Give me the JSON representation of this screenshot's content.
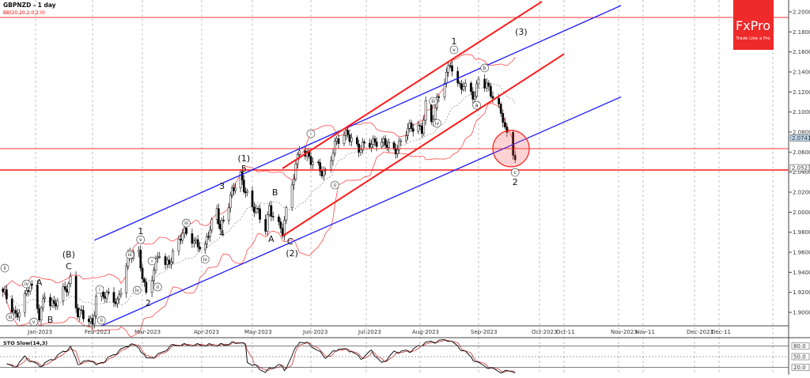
{
  "header": {
    "symbol_title": "GBPNZD - 1 day",
    "indicator": "BB(20,20,2.0,2.0)"
  },
  "logo": {
    "brand": "FxPro",
    "tagline": "Trade Like a Pro",
    "color": "#ee2a2a"
  },
  "colors": {
    "bull": "#ffffff",
    "bear": "#000000",
    "bands": "#ff4a4a",
    "mid": "#888888",
    "blue_channel": "#1a1aff",
    "red_channel": "#ff1a1a",
    "stoch_k": "#000000",
    "stoch_d": "#cc3333"
  },
  "chart_data": [
    {
      "type": "candlestick",
      "title": "GBPNZD - 1 day",
      "ylim": [
        1.88,
        2.21
      ],
      "y_ticks": [
        "2.20000",
        "2.18000",
        "2.16000",
        "2.14000",
        "2.12000",
        "2.10000",
        "2.08000",
        "2.06000",
        "2.04000",
        "2.02000",
        "2.00000",
        "1.98000",
        "1.96000",
        "1.94000",
        "1.92000",
        "1.90000"
      ],
      "x_ticks": [
        {
          "label": "Jan-2023",
          "date": "2023-01-01"
        },
        {
          "label": "Feb-2023",
          "date": "2023-02-01"
        },
        {
          "label": "Mar-2023",
          "date": "2023-03-01"
        },
        {
          "label": "Apr-2023",
          "date": "2023-04-01"
        },
        {
          "label": "May-2023",
          "date": "2023-05-01"
        },
        {
          "label": "Jun-2023",
          "date": "2023-06-01"
        },
        {
          "label": "Jul-2023",
          "date": "2023-07-01"
        },
        {
          "label": "Aug-2023",
          "date": "2023-08-01"
        },
        {
          "label": "Sep-2023",
          "date": "2023-09-01"
        },
        {
          "label": "Oct-2023",
          "date": "2023-10-01"
        },
        {
          "label": "Oct-11",
          "date": "2023-10-11"
        },
        {
          "label": "Nov-2023",
          "date": "2023-11-01"
        },
        {
          "label": "Nov-11",
          "date": "2023-11-11"
        },
        {
          "label": "Dec-2023",
          "date": "2023-12-01"
        },
        {
          "label": "Dec-11",
          "date": "2023-12-11"
        }
      ],
      "grid": "vertical-dashed",
      "approx_close_pivots": [
        [
          "2022-12-14",
          1.918
        ],
        [
          "2022-12-21",
          1.898
        ],
        [
          "2022-12-29",
          1.926
        ],
        [
          "2023-01-03",
          1.898
        ],
        [
          "2023-01-06",
          1.92
        ],
        [
          "2023-01-11",
          1.904
        ],
        [
          "2023-01-20",
          1.934
        ],
        [
          "2023-01-24",
          1.898
        ],
        [
          "2023-02-01",
          1.89
        ],
        [
          "2023-02-03",
          1.918
        ],
        [
          "2023-02-15",
          1.912
        ],
        [
          "2023-02-21",
          1.954
        ],
        [
          "2023-02-27",
          1.958
        ],
        [
          "2023-03-03",
          1.92
        ],
        [
          "2023-03-10",
          1.958
        ],
        [
          "2023-03-13",
          1.946
        ],
        [
          "2023-03-22",
          1.978
        ],
        [
          "2023-04-03",
          1.966
        ],
        [
          "2023-04-10",
          2.002
        ],
        [
          "2023-04-12",
          1.986
        ],
        [
          "2023-04-19",
          2.018
        ],
        [
          "2023-04-24",
          2.036
        ],
        [
          "2023-05-01",
          2.006
        ],
        [
          "2023-05-08",
          1.984
        ],
        [
          "2023-05-10",
          2.007
        ],
        [
          "2023-05-17",
          1.978
        ],
        [
          "2023-05-22",
          2.029
        ],
        [
          "2023-05-26",
          2.067
        ],
        [
          "2023-06-01",
          2.049
        ],
        [
          "2023-06-09",
          2.041
        ],
        [
          "2023-06-15",
          2.069
        ],
        [
          "2023-06-21",
          2.081
        ],
        [
          "2023-06-27",
          2.061
        ],
        [
          "2023-07-06",
          2.073
        ],
        [
          "2023-07-17",
          2.061
        ],
        [
          "2023-07-24",
          2.081
        ],
        [
          "2023-08-02",
          2.085
        ],
        [
          "2023-08-04",
          2.109
        ],
        [
          "2023-08-07",
          2.089
        ],
        [
          "2023-08-17",
          2.152
        ],
        [
          "2023-08-21",
          2.125
        ],
        [
          "2023-08-28",
          2.121
        ],
        [
          "2023-08-30",
          2.117
        ],
        [
          "2023-09-01",
          2.137
        ],
        [
          "2023-09-07",
          2.117
        ],
        [
          "2023-09-13",
          2.097
        ],
        [
          "2023-09-15",
          2.077
        ],
        [
          "2023-09-19",
          2.05233
        ]
      ],
      "price_labels": [
        {
          "text": "2.07416",
          "price": 2.07416,
          "style": "bid"
        },
        {
          "text": "2.05233",
          "price": 2.05233,
          "style": "last"
        }
      ],
      "horizontal_lines": [
        2.1944,
        2.0635,
        2.0421
      ],
      "trendlines": [
        {
          "color": "blue",
          "from": [
            "2023-02-02",
            1.972
          ],
          "to": [
            "2023-11-02",
            2.2063
          ]
        },
        {
          "color": "blue",
          "from": [
            "2023-02-06",
            1.8865
          ],
          "to": [
            "2023-11-02",
            2.1151
          ]
        },
        {
          "color": "red",
          "from": [
            "2023-05-17",
            2.0437
          ],
          "to": [
            "2023-10-02",
            2.2103
          ]
        },
        {
          "color": "red",
          "from": [
            "2023-05-17",
            1.9762
          ],
          "to": [
            "2023-10-11",
            2.1579
          ]
        }
      ],
      "highlight_circle": {
        "date": "2023-09-17",
        "price": 2.0635
      },
      "wave_labels": [
        {
          "text": "ii",
          "date": "2022-12-15",
          "price": 1.9442,
          "circled": true
        },
        {
          "text": "iii",
          "date": "2022-12-18",
          "price": 1.8953,
          "circled": true
        },
        {
          "text": "iv",
          "date": "2022-12-27",
          "price": 1.9284,
          "circled": true
        },
        {
          "text": "v",
          "date": "2022-12-31",
          "price": 1.8905,
          "circled": true
        },
        {
          "text": "A",
          "date": "2023-01-03",
          "price": 1.93,
          "circled": false
        },
        {
          "text": "B",
          "date": "2023-01-09",
          "price": 1.8929,
          "circled": false
        },
        {
          "text": "(B)",
          "date": "2023-01-19",
          "price": 1.958,
          "circled": false
        },
        {
          "text": "C",
          "date": "2023-01-19",
          "price": 1.946,
          "circled": false
        },
        {
          "text": "i",
          "date": "2023-02-05",
          "price": 1.9229,
          "circled": true
        },
        {
          "text": "ii",
          "date": "2023-02-06",
          "price": 1.8921,
          "circled": true
        },
        {
          "text": "iii",
          "date": "2023-02-22",
          "price": 1.9576,
          "circled": true
        },
        {
          "text": "iv",
          "date": "2023-02-26",
          "price": 1.9221,
          "circled": true
        },
        {
          "text": "v",
          "date": "2023-02-28",
          "price": 1.9726,
          "circled": true
        },
        {
          "text": "1",
          "date": "2023-02-28",
          "price": 1.9813,
          "circled": false
        },
        {
          "text": "2",
          "date": "2023-03-04",
          "price": 1.9095,
          "circled": false
        },
        {
          "text": "i",
          "date": "2023-03-06",
          "price": 1.9513,
          "circled": true
        },
        {
          "text": "ii",
          "date": "2023-03-09",
          "price": 1.9253,
          "circled": true
        },
        {
          "text": "iii",
          "date": "2023-03-24",
          "price": 1.9892,
          "circled": true
        },
        {
          "text": "iv",
          "date": "2023-04-03",
          "price": 1.9529,
          "circled": true
        },
        {
          "text": "3",
          "date": "2023-04-13",
          "price": 2.0263,
          "circled": false
        },
        {
          "text": "4",
          "date": "2023-04-13",
          "price": 1.979,
          "circled": false
        },
        {
          "text": "(1)",
          "date": "2023-04-26",
          "price": 2.054,
          "circled": false
        },
        {
          "text": "5",
          "date": "2023-04-26",
          "price": 2.0437,
          "circled": false
        },
        {
          "text": "A",
          "date": "2023-05-11",
          "price": 1.9734,
          "circled": false
        },
        {
          "text": "B",
          "date": "2023-05-13",
          "price": 2.02,
          "circled": false
        },
        {
          "text": "C",
          "date": "2023-05-21",
          "price": 1.971,
          "circled": false
        },
        {
          "text": "(2)",
          "date": "2023-05-22",
          "price": 1.9592,
          "circled": false
        },
        {
          "text": "i",
          "date": "2023-06-01",
          "price": 2.0784,
          "circled": true
        },
        {
          "text": "ii",
          "date": "2023-06-14",
          "price": 2.0271,
          "circled": true
        },
        {
          "text": "iii",
          "date": "2023-08-08",
          "price": 2.1108,
          "circled": true
        },
        {
          "text": "iv",
          "date": "2023-08-10",
          "price": 2.0887,
          "circled": true
        },
        {
          "text": "v",
          "date": "2023-08-19",
          "price": 2.1621,
          "circled": true
        },
        {
          "text": "1",
          "date": "2023-08-19",
          "price": 2.1708,
          "circled": false
        },
        {
          "text": "a",
          "date": "2023-08-31",
          "price": 2.1068,
          "circled": true
        },
        {
          "text": "b",
          "date": "2023-09-04",
          "price": 2.144,
          "circled": true
        },
        {
          "text": "c",
          "date": "2023-09-19",
          "price": 2.0397,
          "circled": true
        },
        {
          "text": "2",
          "date": "2023-09-19",
          "price": 2.0303,
          "circled": false
        },
        {
          "text": "(3)",
          "date": "2023-09-22",
          "price": 2.1803,
          "circled": false
        }
      ]
    },
    {
      "type": "line",
      "title": "STO Slow(14,3)",
      "ylim": [
        0,
        100
      ],
      "y_ticks": [
        "80.0",
        "50.0",
        "20.0"
      ],
      "levels": [
        80,
        50,
        20
      ],
      "k_pivots": [
        [
          "2022-12-16",
          30
        ],
        [
          "2022-12-20",
          18
        ],
        [
          "2022-12-26",
          48
        ],
        [
          "2023-01-03",
          23
        ],
        [
          "2023-01-09",
          38
        ],
        [
          "2023-01-20",
          76
        ],
        [
          "2023-01-24",
          30
        ],
        [
          "2023-02-01",
          40
        ],
        [
          "2023-02-03",
          23
        ],
        [
          "2023-02-22",
          85
        ],
        [
          "2023-02-27",
          76
        ],
        [
          "2023-03-03",
          44
        ],
        [
          "2023-03-08",
          51
        ],
        [
          "2023-03-17",
          83
        ],
        [
          "2023-03-30",
          83
        ],
        [
          "2023-04-12",
          83
        ],
        [
          "2023-04-24",
          92
        ],
        [
          "2023-04-27",
          80
        ],
        [
          "2023-04-28",
          37
        ],
        [
          "2023-05-08",
          8
        ],
        [
          "2023-05-15",
          30
        ],
        [
          "2023-05-18",
          12
        ],
        [
          "2023-05-26",
          94
        ],
        [
          "2023-06-01",
          83
        ],
        [
          "2023-06-09",
          48
        ],
        [
          "2023-06-16",
          73
        ],
        [
          "2023-06-23",
          66
        ],
        [
          "2023-06-28",
          44
        ],
        [
          "2023-07-04",
          66
        ],
        [
          "2023-07-10",
          30
        ],
        [
          "2023-07-17",
          62
        ],
        [
          "2023-07-27",
          66
        ],
        [
          "2023-08-03",
          87
        ],
        [
          "2023-08-16",
          97
        ],
        [
          "2023-08-24",
          66
        ],
        [
          "2023-09-01",
          30
        ],
        [
          "2023-09-11",
          8
        ],
        [
          "2023-09-19",
          8
        ]
      ]
    }
  ]
}
